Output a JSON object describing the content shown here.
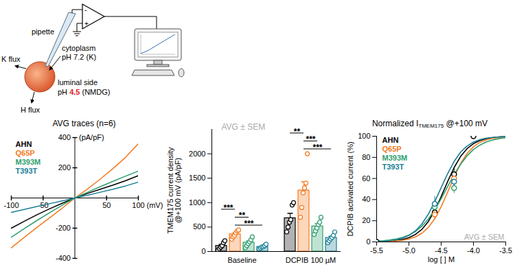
{
  "diagram": {
    "labels": {
      "pipette": "pipette",
      "cytoplasm": "cytoplasm",
      "cytoplasm_ph": "pH 7.2 (K)",
      "k_flux": "K flux",
      "luminal": "luminal side",
      "h_flux": "H flux",
      "amp_minus": "-",
      "amp_plus": "+"
    },
    "luminal_ph": {
      "prefix": "pH ",
      "value": "4.5",
      "suffix": " (NMDG)",
      "color": "#e0201b"
    }
  },
  "chart_data": [
    {
      "type": "line",
      "title": "AVG traces (n=6)",
      "xlabel": "(mV)",
      "ylabel": "(pA/pF)",
      "x": [
        -100,
        -80,
        -60,
        -40,
        -20,
        0,
        20,
        40,
        60,
        80,
        100
      ],
      "series": [
        {
          "name": "AHN",
          "color": "#000000",
          "values": [
            -200,
            -155,
            -112,
            -72,
            -35,
            0,
            30,
            58,
            85,
            115,
            148
          ]
        },
        {
          "name": "Q65P",
          "color": "#f47a20",
          "values": [
            -330,
            -262,
            -196,
            -132,
            -68,
            0,
            60,
            125,
            195,
            270,
            360
          ]
        },
        {
          "name": "M393M",
          "color": "#2f9e6e",
          "values": [
            -260,
            -204,
            -150,
            -98,
            -48,
            0,
            38,
            75,
            110,
            145,
            178
          ]
        },
        {
          "name": "T393T",
          "color": "#1b7f96",
          "values": [
            -95,
            -76,
            -57,
            -38,
            -19,
            0,
            18,
            38,
            58,
            80,
            105
          ]
        }
      ],
      "xlim": [
        -100,
        100
      ],
      "xticks": [
        -100,
        -50,
        50,
        100
      ],
      "ylim": [
        -400,
        400
      ],
      "yticks": [
        -400,
        -200,
        200,
        400
      ],
      "legend": "top-left"
    },
    {
      "type": "bar",
      "ylabel": "TMEM175 current density\n@+100 mV (pA/pF)",
      "categories": [
        "Baseline",
        "DCPIB 100 µM"
      ],
      "series": [
        {
          "name": "AHN",
          "color": "#000000",
          "values": [
            117,
            683
          ],
          "errors": [
            29,
            98
          ],
          "points": [
            [
              30,
              60,
              90,
              120,
              180,
              220
            ],
            [
              400,
              500,
              600,
              650,
              950,
              1000
            ]
          ]
        },
        {
          "name": "Q65P",
          "color": "#f47a20",
          "values": [
            353,
            1250
          ],
          "errors": [
            30,
            176
          ],
          "points": [
            [
              250,
              300,
              330,
              380,
              420,
              440
            ],
            [
              700,
              900,
              1200,
              1300,
              1400,
              2000
            ]
          ]
        },
        {
          "name": "M393M",
          "color": "#2f9e6e",
          "values": [
            183,
            517
          ],
          "errors": [
            33,
            52
          ],
          "points": [
            [
              80,
              120,
              160,
              200,
              240,
              300
            ],
            [
              350,
              420,
              480,
              550,
              600,
              700
            ]
          ]
        },
        {
          "name": "T393T",
          "color": "#1b7f96",
          "values": [
            97,
            280
          ],
          "errors": [
            14,
            32
          ],
          "points": [
            [
              50,
              70,
              90,
              100,
              120,
              150
            ],
            [
              180,
              220,
              260,
              290,
              330,
              400
            ]
          ]
        }
      ],
      "annotations": [
        {
          "category": "Baseline",
          "from": "Q65P",
          "to": "T393T",
          "text": "***"
        },
        {
          "category": "Baseline",
          "from": "Q65P",
          "to": "M393M",
          "text": "**"
        },
        {
          "category": "Baseline",
          "from": "AHN",
          "to": "Q65P",
          "text": "***"
        },
        {
          "category": "DCPIB 100 µM",
          "from": "Q65P",
          "to": "T393T",
          "text": "***"
        },
        {
          "category": "DCPIB 100 µM",
          "from": "Q65P",
          "to": "M393M",
          "text": "***"
        },
        {
          "category": "DCPIB 100 µM",
          "from": "AHN",
          "to": "Q65P",
          "text": "**"
        }
      ],
      "inset_text": "AVG ± SEM",
      "ylim": [
        0,
        2500
      ],
      "yticks": [
        0,
        500,
        1000,
        1500,
        2000
      ]
    },
    {
      "type": "line",
      "title": {
        "text": "Normalized I",
        "subscript": "TMEM175",
        "suffix": " @+100 mV"
      },
      "xlabel": "log [ ] M",
      "ylabel": "DCPIB activated current (%)",
      "x": [
        -5.5,
        -5.4,
        -5.3,
        -5.2,
        -5.1,
        -5.0,
        -4.9,
        -4.8,
        -4.7,
        -4.6,
        -4.5,
        -4.4,
        -4.3,
        -4.2,
        -4.1,
        -4.0,
        -3.9,
        -3.8,
        -3.7,
        -3.6,
        -3.5
      ],
      "series": [
        {
          "name": "AHN",
          "color": "#000000",
          "values": [
            0.2,
            0.4,
            0.7,
            1.3,
            2.3,
            4.0,
            7.0,
            11.8,
            19.2,
            29.7,
            42.9,
            57.1,
            70.3,
            80.8,
            88.2,
            93.0,
            96.0,
            97.7,
            98.7,
            99.3,
            99.6
          ],
          "points": {
            "x": [
              -5.5,
              -4.6,
              -4.3,
              -4.0
            ],
            "values": [
              0,
              28,
              64,
              100
            ],
            "errors": [
              0,
              5,
              6,
              0
            ]
          }
        },
        {
          "name": "Q65P",
          "color": "#f47a20",
          "values": [
            0.1,
            0.3,
            0.5,
            0.9,
            1.5,
            2.7,
            4.7,
            8.1,
            13.6,
            21.9,
            33.4,
            47.1,
            61.4,
            74.0,
            83.6,
            90.0,
            94.2,
            96.6,
            98.1,
            98.9,
            99.4
          ],
          "points": {
            "x": [
              -4.6,
              -4.3
            ],
            "values": [
              26,
              60
            ],
            "errors": [
              5,
              7
            ]
          }
        },
        {
          "name": "M393M",
          "color": "#2f9e6e",
          "values": [
            0.7,
            1.1,
            1.7,
            2.7,
            4.2,
            6.5,
            9.9,
            14.8,
            21.6,
            30.4,
            40.9,
            52.3,
            63.5,
            73.4,
            81.4,
            87.4,
            91.6,
            94.6,
            96.5,
            97.8,
            98.6
          ],
          "points": {
            "x": [
              -4.6,
              -4.3
            ],
            "values": [
              33,
              51
            ],
            "errors": [
              6,
              5
            ]
          }
        },
        {
          "name": "T393T",
          "color": "#1b7f96",
          "values": [
            0.3,
            0.6,
            1.1,
            2.0,
            3.5,
            6.1,
            10.4,
            16.9,
            26.1,
            38.1,
            51.4,
            64.6,
            76.1,
            84.9,
            90.7,
            94.5,
            96.8,
            98.2,
            98.9,
            99.4,
            99.7
          ],
          "points": {
            "x": [
              -4.6,
              -4.3
            ],
            "values": [
              36,
              57
            ],
            "errors": [
              7,
              6
            ]
          }
        }
      ],
      "xlim": [
        -5.5,
        -3.5
      ],
      "xticks": [
        -5.5,
        {
          "value": -5,
          "label": "-5.0"
        },
        -4.5,
        {
          "value": -4,
          "label": "-4.0"
        },
        -3.5
      ],
      "ylim": [
        0,
        100
      ],
      "yticks": [
        0,
        20,
        40,
        60,
        80,
        100
      ],
      "legend": "top-left",
      "inset_text": "AVG ± SEM"
    }
  ]
}
